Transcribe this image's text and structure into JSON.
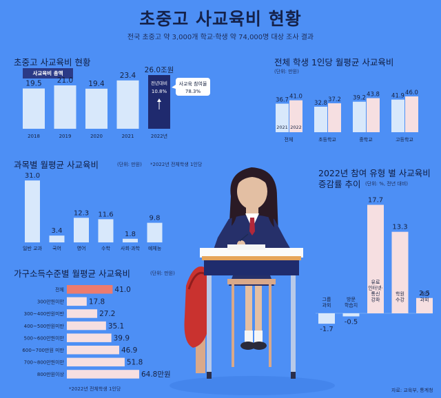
{
  "header": {
    "title": "초중고 사교육비 현황",
    "subtitle": "전국 초중고 약 3,000개 학교·학생 약 74,000명 대상 조사 결과"
  },
  "colors": {
    "background": "#4d8ff5",
    "bar_light": "#d8e8fb",
    "bar_pink": "#f6dfe1",
    "bar_navy": "#1f2a6e",
    "highlight_salmon": "#ec7b6e",
    "text_dark": "#16213f"
  },
  "sections": {
    "total": {
      "title": "초중고 사교육비 현황",
      "pill": "사교육비 총액"
    },
    "monthly": {
      "title": "전체 학생 1인당 월평균 사교육비",
      "note": "(단위: 만원)"
    },
    "subject": {
      "title": "과목별 월평균 사교육비",
      "note": "(단위: 만원)",
      "note2": "*2022년 전체학생 1인당"
    },
    "income": {
      "title": "가구소득수준별 월평균 사교육비",
      "note": "(단위: 만원)",
      "footnote": "*2022년 전체학생 1인당"
    },
    "type": {
      "title_line1": "2022년 참여 유형 별 사교육비",
      "title_line2": "증감률 추이",
      "note": "(단위: %, 전년 대비)"
    }
  },
  "source": "자료: 교육부, 통계청",
  "chart_data": [
    {
      "type": "bar",
      "title": "초중고 사교육비 현황",
      "categories": [
        "2018",
        "2019",
        "2020",
        "2021",
        "2022년"
      ],
      "values": [
        19.5,
        21.0,
        19.4,
        23.4,
        26.0
      ],
      "value_labels": [
        "19.5",
        "21.0",
        "19.4",
        "23.4",
        "26.0조원"
      ],
      "highlight_index": 4,
      "inner_label": [
        "전년대비",
        "10.8%"
      ],
      "callout": [
        "사교육 참여율",
        "78.3%"
      ],
      "ylim": [
        0,
        36
      ]
    },
    {
      "type": "bar",
      "title": "전체 학생 1인당 월평균 사교육비",
      "categories": [
        "전체",
        "초등학교",
        "중학교",
        "고등학교"
      ],
      "series": [
        {
          "name": "2021",
          "values": [
            36.7,
            32.8,
            39.2,
            41.9
          ]
        },
        {
          "name": "2022",
          "values": [
            41.0,
            37.2,
            43.8,
            46.0
          ]
        }
      ],
      "ylim": [
        0,
        56
      ]
    },
    {
      "type": "bar",
      "title": "과목별 월평균 사교육비",
      "categories": [
        "일반 교과",
        "국어",
        "영어",
        "수학",
        "사회·과학",
        "예체능"
      ],
      "values": [
        31.0,
        3.4,
        12.3,
        11.6,
        1.8,
        9.8
      ],
      "value_labels": [
        "31.0",
        "3.4",
        "12.3",
        "11.6",
        "1.8",
        "9.8"
      ],
      "ylim": [
        0,
        32
      ]
    },
    {
      "type": "bar",
      "orientation": "horizontal",
      "title": "가구소득수준별 월평균 사교육비",
      "categories": [
        "전체",
        "300만원미만",
        "300~400만원미만",
        "400~500만원미만",
        "500~600만원미만",
        "600~700만원 미만",
        "700~800만원미만",
        "800만원이상"
      ],
      "values": [
        41.0,
        17.8,
        27.2,
        35.1,
        39.9,
        46.9,
        51.8,
        64.8
      ],
      "value_labels": [
        "41.0",
        "17.8",
        "27.2",
        "35.1",
        "39.9",
        "46.9",
        "51.8",
        "64.8만원"
      ],
      "highlight_index": 0
    },
    {
      "type": "bar",
      "title": "2022년 참여 유형 별 사교육비 증감률 추이",
      "categories": [
        "그룹과외",
        "방문학습지",
        "유료인터넷·통신강좌",
        "학원수강",
        "개인과외"
      ],
      "category_lines": [
        [
          "그룹",
          "과외"
        ],
        [
          "방문",
          "학습지"
        ],
        [
          "유료",
          "인터넷·",
          "통신",
          "강좌"
        ],
        [
          "학원",
          "수강"
        ],
        [
          "개인",
          "과외"
        ]
      ],
      "values": [
        -1.7,
        -0.5,
        17.7,
        13.3,
        2.5
      ],
      "value_labels": [
        "-1.7",
        "-0.5",
        "17.7",
        "13.3",
        "2.5"
      ],
      "ylim": [
        -3,
        19
      ]
    }
  ]
}
